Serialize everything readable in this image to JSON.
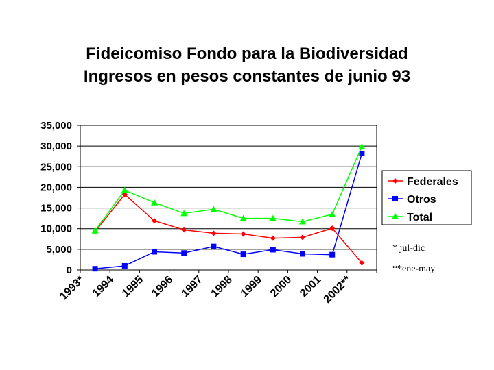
{
  "chart_data": {
    "type": "line",
    "title": [
      "Fideicomiso Fondo para la Biodiversidad",
      "Ingresos en pesos constantes de junio 93"
    ],
    "categories": [
      "1993*",
      "1994",
      "1995",
      "1996",
      "1997",
      "1998",
      "1999",
      "2000",
      "2001",
      "2002**"
    ],
    "series": [
      {
        "name": "Federales",
        "color": "#ff0000",
        "marker": "diamond",
        "values": [
          9300,
          18300,
          11900,
          9700,
          8900,
          8700,
          7700,
          7900,
          10100,
          1700
        ]
      },
      {
        "name": "Otros",
        "color": "#0000ff",
        "marker": "square",
        "values": [
          300,
          1000,
          4400,
          4100,
          5700,
          3800,
          4900,
          3900,
          3700,
          28200
        ]
      },
      {
        "name": "Total",
        "color": "#00ff00",
        "marker": "triangle",
        "values": [
          9500,
          19300,
          16300,
          13700,
          14700,
          12500,
          12500,
          11700,
          13500,
          29900
        ]
      }
    ],
    "ylim": [
      0,
      35000
    ],
    "yticks": [
      "0",
      "5,000",
      "10,000",
      "15,000",
      "20,000",
      "25,000",
      "30,000",
      "35,000"
    ],
    "grid": true,
    "legend": "right",
    "notes": [
      "*  jul-dic",
      "**ene-may"
    ]
  }
}
